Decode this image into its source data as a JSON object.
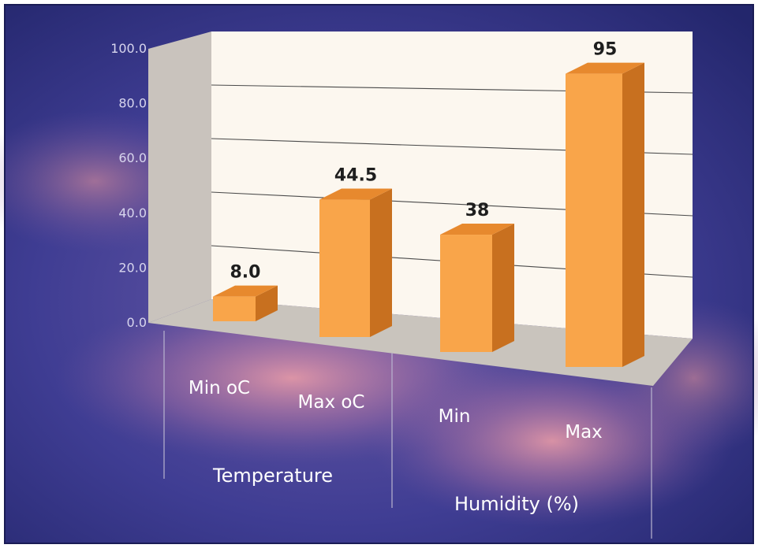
{
  "chart_data": {
    "type": "bar",
    "categories": [
      "Min  oC",
      "Max oC",
      "Min",
      "Max"
    ],
    "groups": [
      {
        "label": "Temperature",
        "categories": [
          "Min  oC",
          "Max oC"
        ]
      },
      {
        "label": "Humidity (%)",
        "categories": [
          "Min",
          "Max"
        ]
      }
    ],
    "values": [
      8.0,
      44.5,
      38,
      95
    ],
    "data_labels": [
      "8.0",
      "44.5",
      "38",
      "95"
    ],
    "y_ticks": [
      "0.0",
      "20.0",
      "40.0",
      "60.0",
      "80.0",
      "100.0"
    ],
    "ylim": [
      0,
      100
    ],
    "grid": true,
    "legend": "none",
    "style": "3d-columns",
    "colors": {
      "bar_front": "#f9a54a",
      "bar_side": "#c8701f",
      "bar_top": "#e7892e",
      "wall": "#fcf7ef",
      "side_wall": "#c9c3bd",
      "floor": "#c9c4bd",
      "background": "#3c3a8e"
    }
  }
}
